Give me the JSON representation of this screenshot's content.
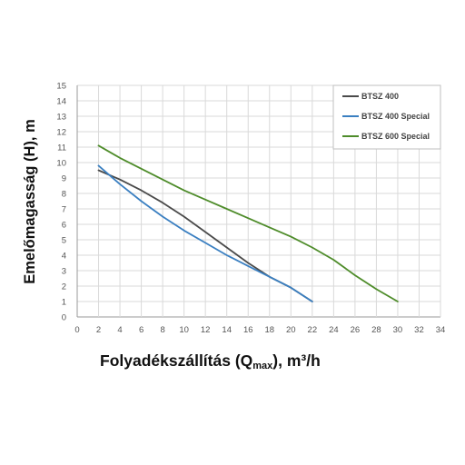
{
  "chart_data": {
    "type": "line",
    "xlabel_main": "Folyadékszállítás (Q",
    "xlabel_sub": "max",
    "xlabel_tail": "), m³/h",
    "ylabel": "Emelőmagasság (H), m",
    "xlim": [
      0,
      34
    ],
    "ylim": [
      0,
      15
    ],
    "x_ticks": [
      "0",
      "2",
      "4",
      "6",
      "8",
      "10",
      "12",
      "14",
      "16",
      "18",
      "20",
      "22",
      "24",
      "26",
      "28",
      "30",
      "32",
      "34"
    ],
    "y_ticks": [
      "0",
      "1",
      "2",
      "3",
      "4",
      "5",
      "6",
      "7",
      "8",
      "9",
      "10",
      "11",
      "12",
      "13",
      "14",
      "15"
    ],
    "grid": true,
    "legend_position": "top-right",
    "series": [
      {
        "name": "BTSZ 400",
        "color": "#4a4a4a",
        "x": [
          2,
          4,
          6,
          8,
          10,
          12,
          14,
          16,
          18,
          20,
          22
        ],
        "y": [
          9.5,
          8.9,
          8.2,
          7.4,
          6.5,
          5.5,
          4.5,
          3.5,
          2.6,
          1.9,
          1.0
        ]
      },
      {
        "name": "BTSZ 400 Special",
        "color": "#3a7fc1",
        "x": [
          2,
          4,
          6,
          8,
          10,
          12,
          14,
          16,
          18,
          20,
          22
        ],
        "y": [
          9.8,
          8.6,
          7.5,
          6.5,
          5.6,
          4.8,
          4.0,
          3.3,
          2.6,
          1.9,
          1.0
        ]
      },
      {
        "name": "BTSZ 600 Special",
        "color": "#4e8c2a",
        "x": [
          2,
          4,
          6,
          8,
          10,
          12,
          14,
          16,
          18,
          20,
          22,
          24,
          26,
          28,
          30
        ],
        "y": [
          11.1,
          10.3,
          9.6,
          8.9,
          8.2,
          7.6,
          7.0,
          6.4,
          5.8,
          5.2,
          4.5,
          3.7,
          2.7,
          1.8,
          1.0
        ]
      }
    ]
  }
}
